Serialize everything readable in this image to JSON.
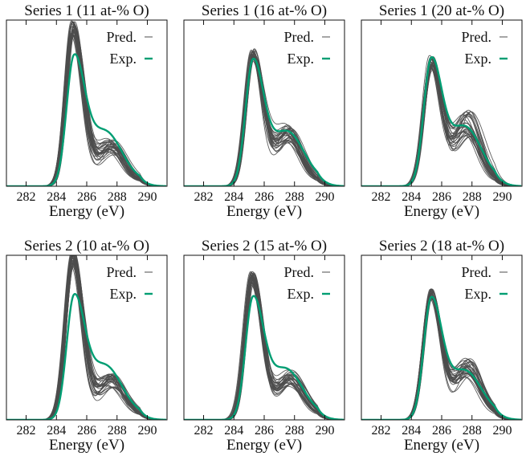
{
  "figure": {
    "colors": {
      "predicted": "#4d4d4d",
      "experimental": "#009e73"
    }
  },
  "chart_data": [
    {
      "type": "line",
      "title": "Series 1 (11 at-% O)",
      "xlabel": "Energy (eV)",
      "ylabel": "",
      "xticks": [
        "282",
        "284",
        "286",
        "288",
        "290"
      ],
      "xlim": [
        280.7,
        291.3
      ],
      "ylim": [
        0,
        1
      ],
      "legend": "top-right",
      "yticks": false,
      "series": [
        {
          "name": "Pred.",
          "peak_ev": 285.1,
          "peak": 0.94,
          "shoulder_ev": 287.6,
          "shoulder": 0.2,
          "curves": 30
        },
        {
          "name": "Exp.",
          "peak_ev": 285.15,
          "peak": 0.71,
          "shoulder_ev": 287.2,
          "shoulder": 0.3
        }
      ]
    },
    {
      "type": "line",
      "title": "Series 1 (16 at-% O)",
      "xlabel": "Energy (eV)",
      "ylabel": "",
      "xticks": [
        "282",
        "284",
        "286",
        "288",
        "290"
      ],
      "xlim": [
        280.7,
        291.3
      ],
      "ylim": [
        0,
        1
      ],
      "legend": "top-right",
      "yticks": false,
      "series": [
        {
          "name": "Pred.",
          "peak_ev": 285.25,
          "peak": 0.77,
          "shoulder_ev": 287.6,
          "shoulder": 0.28,
          "curves": 30
        },
        {
          "name": "Exp.",
          "peak_ev": 285.25,
          "peak": 0.7,
          "shoulder_ev": 287.5,
          "shoulder": 0.3
        }
      ]
    },
    {
      "type": "line",
      "title": "Series 1 (20 at-% O)",
      "xlabel": "Energy (eV)",
      "ylabel": "",
      "xticks": [
        "282",
        "284",
        "286",
        "288",
        "290"
      ],
      "xlim": [
        280.7,
        291.3
      ],
      "ylim": [
        0,
        1
      ],
      "legend": "top-right",
      "yticks": false,
      "series": [
        {
          "name": "Pred.",
          "peak_ev": 285.3,
          "peak": 0.72,
          "shoulder_ev": 287.7,
          "shoulder": 0.34,
          "curves": 30
        },
        {
          "name": "Exp.",
          "peak_ev": 285.3,
          "peak": 0.7,
          "shoulder_ev": 287.5,
          "shoulder": 0.33
        }
      ]
    },
    {
      "type": "line",
      "title": "Series 2 (10 at-% O)",
      "xlabel": "Energy (eV)",
      "ylabel": "",
      "xticks": [
        "282",
        "284",
        "286",
        "288",
        "290"
      ],
      "xlim": [
        280.7,
        291.3
      ],
      "ylim": [
        0,
        1
      ],
      "legend": "top-right",
      "yticks": false,
      "series": [
        {
          "name": "Pred.",
          "peak_ev": 285.1,
          "peak": 0.97,
          "shoulder_ev": 287.6,
          "shoulder": 0.2,
          "curves": 30
        },
        {
          "name": "Exp.",
          "peak_ev": 285.15,
          "peak": 0.68,
          "shoulder_ev": 287.2,
          "shoulder": 0.3
        }
      ]
    },
    {
      "type": "line",
      "title": "Series 2 (15 at-% O)",
      "xlabel": "Energy (eV)",
      "ylabel": "",
      "xticks": [
        "282",
        "284",
        "286",
        "288",
        "290"
      ],
      "xlim": [
        280.7,
        291.3
      ],
      "ylim": [
        0,
        1
      ],
      "legend": "top-right",
      "yticks": false,
      "series": [
        {
          "name": "Pred.",
          "peak_ev": 285.2,
          "peak": 0.85,
          "shoulder_ev": 287.7,
          "shoulder": 0.22,
          "curves": 30
        },
        {
          "name": "Exp.",
          "peak_ev": 285.25,
          "peak": 0.68,
          "shoulder_ev": 287.4,
          "shoulder": 0.28
        }
      ]
    },
    {
      "type": "line",
      "title": "Series 2 (18 at-% O)",
      "xlabel": "Energy (eV)",
      "ylabel": "",
      "xticks": [
        "282",
        "284",
        "286",
        "288",
        "290"
      ],
      "xlim": [
        280.7,
        291.3
      ],
      "ylim": [
        0,
        1
      ],
      "legend": "top-right",
      "yticks": false,
      "series": [
        {
          "name": "Pred.",
          "peak_ev": 285.3,
          "peak": 0.75,
          "shoulder_ev": 287.7,
          "shoulder": 0.28,
          "curves": 30
        },
        {
          "name": "Exp.",
          "peak_ev": 285.3,
          "peak": 0.68,
          "shoulder_ev": 287.5,
          "shoulder": 0.27
        }
      ]
    }
  ]
}
